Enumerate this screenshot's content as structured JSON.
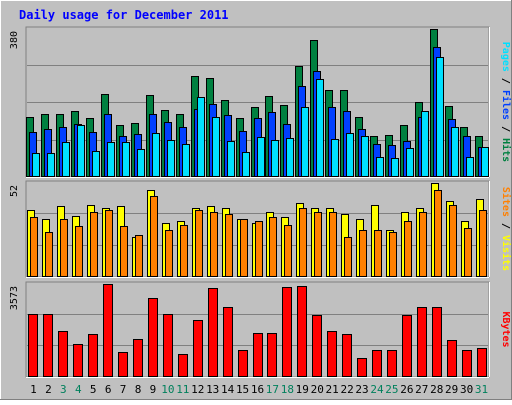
{
  "chart_data": [
    {
      "type": "bar",
      "title": "Daily usage for December 2011",
      "x": [
        "1",
        "2",
        "3",
        "4",
        "5",
        "6",
        "7",
        "8",
        "9",
        "10",
        "11",
        "12",
        "13",
        "14",
        "15",
        "16",
        "17",
        "18",
        "19",
        "20",
        "21",
        "22",
        "23",
        "24",
        "25",
        "26",
        "27",
        "28",
        "29",
        "30",
        "31"
      ],
      "weekend_days": [
        "3",
        "4",
        "10",
        "11",
        "17",
        "18",
        "24",
        "25",
        "31"
      ],
      "ymax_label": "380",
      "ylim": [
        0,
        380
      ],
      "ylabel_parts": [
        "Pages",
        "Files",
        "Hits"
      ],
      "series": [
        {
          "name": "Hits",
          "color": "#008040",
          "values": [
            155,
            161,
            163,
            170,
            151,
            214,
            133,
            138,
            210,
            173,
            163,
            260,
            255,
            197,
            152,
            179,
            208,
            186,
            284,
            351,
            223,
            224,
            155,
            106,
            108,
            133,
            193,
            380,
            183,
            128,
            105
          ]
        },
        {
          "name": "Files",
          "color": "#0040ff",
          "values": [
            116,
            122,
            128,
            137,
            116,
            161,
            106,
            110,
            161,
            141,
            128,
            175,
            187,
            158,
            119,
            151,
            167,
            135,
            233,
            271,
            181,
            170,
            123,
            85,
            81,
            92,
            154,
            335,
            150,
            106,
            76
          ]
        },
        {
          "name": "Pages",
          "color": "#00e0ff",
          "values": [
            61,
            61,
            90,
            134,
            68,
            89,
            89,
            73,
            113,
            95,
            85,
            205,
            154,
            93,
            65,
            103,
            96,
            99,
            181,
            252,
            98,
            114,
            104,
            51,
            48,
            74,
            170,
            309,
            128,
            51,
            76
          ]
        }
      ],
      "grid": true
    },
    {
      "type": "bar",
      "ymax_label": "52",
      "ylim": [
        0,
        52
      ],
      "ylabel_parts": [
        "Sites",
        "Visits"
      ],
      "series": [
        {
          "name": "Visits",
          "color": "#ffff00",
          "values": [
            37,
            32,
            39,
            34,
            40,
            38,
            39,
            22,
            48,
            30,
            31,
            38,
            39,
            38,
            32,
            30,
            36,
            33,
            41,
            38,
            38,
            35,
            32,
            40,
            26,
            36,
            38,
            52,
            42,
            31,
            43
          ]
        },
        {
          "name": "Sites",
          "color": "#ff8000",
          "values": [
            33,
            25,
            32,
            28,
            36,
            37,
            28,
            23,
            45,
            26,
            29,
            37,
            36,
            35,
            32,
            31,
            33,
            29,
            38,
            36,
            36,
            22,
            26,
            26,
            25,
            31,
            36,
            48,
            40,
            27,
            37
          ]
        }
      ],
      "grid": true
    },
    {
      "type": "bar",
      "ymax_label": "3573",
      "ylim": [
        0,
        3573
      ],
      "ylabel_parts": [
        "KBytes"
      ],
      "series": [
        {
          "name": "KBytes",
          "color": "#ff0000",
          "values": [
            2420,
            2420,
            1771,
            1283,
            1662,
            3573,
            968,
            1455,
            3044,
            2438,
            877,
            2191,
            3433,
            2681,
            1039,
            1701,
            1688,
            3445,
            3501,
            2373,
            1771,
            1662,
            722,
            1039,
            1039,
            2384,
            2681,
            2680,
            1420,
            1039,
            1130
          ]
        }
      ],
      "grid": true
    }
  ],
  "colors": {
    "background": "#c0c0c0",
    "title": "#0000ff",
    "weekday_label": "#000000",
    "weekend_label": "#00805c",
    "pages": "#00e0ff",
    "files": "#0040ff",
    "hits": "#008040",
    "sites": "#ff8000",
    "visits": "#ffff00",
    "kbytes": "#ff0000",
    "separator": "#000000"
  }
}
